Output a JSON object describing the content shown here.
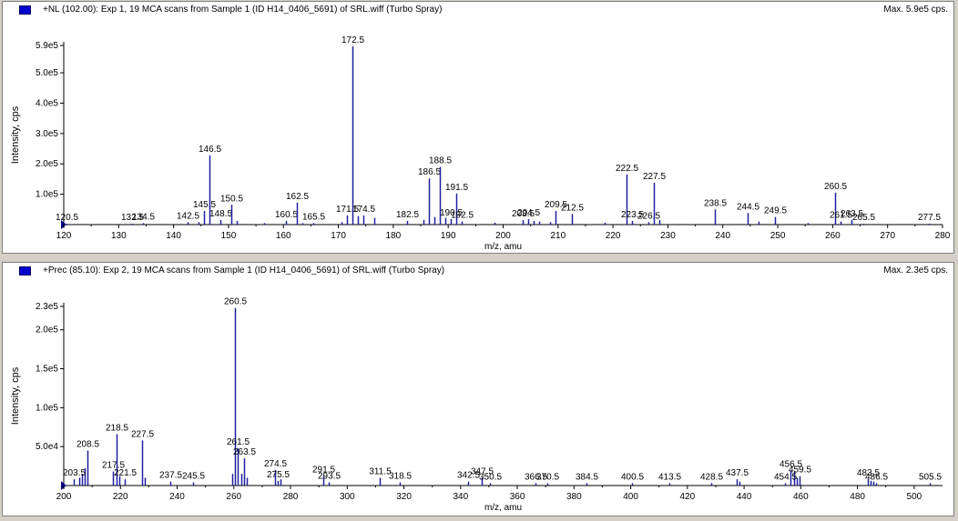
{
  "colors": {
    "peak": "#2020a0",
    "axis": "#000000",
    "swatch": "#0000cc"
  },
  "chart_data": [
    {
      "type": "bar",
      "title": "+NL (102.00): Exp 1, 19 MCA scans from Sample 1 (ID H14_0406_5691) of SRL.wiff (Turbo Spray)",
      "max_label": "Max. 5.9e5 cps.",
      "xlabel": "m/z, amu",
      "ylabel": "Intensity, cps",
      "xlim": [
        120,
        280
      ],
      "ylim": [
        0,
        590000
      ],
      "xticks": [
        "120",
        "130",
        "140",
        "150",
        "160",
        "170",
        "180",
        "190",
        "200",
        "210",
        "220",
        "230",
        "240",
        "250",
        "260",
        "270",
        "280"
      ],
      "yticks": [
        {
          "v": 100000,
          "t": "1.0e5"
        },
        {
          "v": 200000,
          "t": "2.0e5"
        },
        {
          "v": 300000,
          "t": "3.0e5"
        },
        {
          "v": 400000,
          "t": "4.0e5"
        },
        {
          "v": 500000,
          "t": "5.0e5"
        },
        {
          "v": 590000,
          "t": "5.9e5"
        }
      ],
      "peaks": [
        {
          "x": 120.5,
          "y": 3000,
          "label": "120.5"
        },
        {
          "x": 132.5,
          "y": 3000,
          "label": "132.5"
        },
        {
          "x": 134.5,
          "y": 5000,
          "label": "134.5"
        },
        {
          "x": 142.5,
          "y": 8000,
          "label": "142.5"
        },
        {
          "x": 145.5,
          "y": 45000,
          "label": "145.5"
        },
        {
          "x": 146.5,
          "y": 228000,
          "label": "146.5"
        },
        {
          "x": 148.5,
          "y": 15000,
          "label": "148.5"
        },
        {
          "x": 150.5,
          "y": 65000,
          "label": "150.5"
        },
        {
          "x": 160.5,
          "y": 12000,
          "label": "160.5"
        },
        {
          "x": 162.5,
          "y": 72000,
          "label": "162.5"
        },
        {
          "x": 165.5,
          "y": 5000,
          "label": "165.5"
        },
        {
          "x": 171.5,
          "y": 30000,
          "label": "171.5"
        },
        {
          "x": 172.5,
          "y": 587000,
          "label": "172.5"
        },
        {
          "x": 174.5,
          "y": 30000,
          "label": "174.5"
        },
        {
          "x": 182.5,
          "y": 12000,
          "label": "182.5"
        },
        {
          "x": 186.5,
          "y": 152000,
          "label": "186.5"
        },
        {
          "x": 188.5,
          "y": 190000,
          "label": "188.5"
        },
        {
          "x": 190.5,
          "y": 18000,
          "label": "190.5"
        },
        {
          "x": 191.5,
          "y": 102000,
          "label": "191.5"
        },
        {
          "x": 192.5,
          "y": 10000,
          "label": "192.5"
        },
        {
          "x": 203.5,
          "y": 15000,
          "label": "203.5"
        },
        {
          "x": 204.5,
          "y": 18000,
          "label": "204.5"
        },
        {
          "x": 209.5,
          "y": 45000,
          "label": "209.5"
        },
        {
          "x": 212.5,
          "y": 35000,
          "label": "212.5"
        },
        {
          "x": 222.5,
          "y": 165000,
          "label": "222.5"
        },
        {
          "x": 223.5,
          "y": 12000,
          "label": "223.5"
        },
        {
          "x": 226.5,
          "y": 8000,
          "label": "226.5"
        },
        {
          "x": 227.5,
          "y": 138000,
          "label": "227.5"
        },
        {
          "x": 238.5,
          "y": 50000,
          "label": "238.5"
        },
        {
          "x": 244.5,
          "y": 38000,
          "label": "244.5"
        },
        {
          "x": 249.5,
          "y": 25000,
          "label": "249.5"
        },
        {
          "x": 260.5,
          "y": 105000,
          "label": "260.5"
        },
        {
          "x": 261.5,
          "y": 10000,
          "label": "261.5"
        },
        {
          "x": 263.5,
          "y": 15000,
          "label": "263.5"
        },
        {
          "x": 265.5,
          "y": 3000,
          "label": "265.5"
        },
        {
          "x": 277.5,
          "y": 3000,
          "label": "277.5"
        }
      ],
      "minor_peaks": [
        {
          "x": 144.5,
          "y": 8000
        },
        {
          "x": 151.5,
          "y": 12000
        },
        {
          "x": 156.5,
          "y": 5000
        },
        {
          "x": 163.5,
          "y": 5000
        },
        {
          "x": 170.5,
          "y": 8000
        },
        {
          "x": 173.5,
          "y": 28000
        },
        {
          "x": 176.5,
          "y": 22000
        },
        {
          "x": 185.5,
          "y": 15000
        },
        {
          "x": 187.5,
          "y": 25000
        },
        {
          "x": 189.5,
          "y": 22000
        },
        {
          "x": 198.5,
          "y": 6000
        },
        {
          "x": 205.5,
          "y": 12000
        },
        {
          "x": 206.5,
          "y": 10000
        },
        {
          "x": 208.5,
          "y": 8000
        },
        {
          "x": 218.5,
          "y": 6000
        },
        {
          "x": 228.5,
          "y": 15000
        },
        {
          "x": 246.5,
          "y": 10000
        },
        {
          "x": 255.5,
          "y": 5000
        }
      ]
    },
    {
      "type": "bar",
      "title": "+Prec (85.10): Exp 2, 19 MCA scans from Sample 1 (ID H14_0406_5691) of SRL.wiff (Turbo Spray)",
      "max_label": "Max. 2.3e5 cps.",
      "xlabel": "m/z, amu",
      "ylabel": "Intensity, cps",
      "xlim": [
        200,
        510
      ],
      "ylim": [
        0,
        230000
      ],
      "xticks": [
        "200",
        "220",
        "240",
        "260",
        "280",
        "300",
        "320",
        "340",
        "360",
        "380",
        "400",
        "420",
        "440",
        "460",
        "480",
        "500"
      ],
      "yticks": [
        {
          "v": 50000,
          "t": "5.0e4"
        },
        {
          "v": 100000,
          "t": "1.0e5"
        },
        {
          "v": 150000,
          "t": "1.5e5"
        },
        {
          "v": 200000,
          "t": "2.0e5"
        },
        {
          "v": 230000,
          "t": "2.3e5"
        }
      ],
      "peaks": [
        {
          "x": 203.5,
          "y": 8000,
          "label": "203.5"
        },
        {
          "x": 208.5,
          "y": 45000,
          "label": "208.5"
        },
        {
          "x": 217.5,
          "y": 18000,
          "label": "217.5"
        },
        {
          "x": 218.5,
          "y": 66000,
          "label": "218.5"
        },
        {
          "x": 221.5,
          "y": 8000,
          "label": "221.5"
        },
        {
          "x": 227.5,
          "y": 58000,
          "label": "227.5"
        },
        {
          "x": 237.5,
          "y": 5000,
          "label": "237.5"
        },
        {
          "x": 245.5,
          "y": 4000,
          "label": "245.5"
        },
        {
          "x": 260.5,
          "y": 228000,
          "label": "260.5"
        },
        {
          "x": 261.5,
          "y": 48000,
          "label": "261.5"
        },
        {
          "x": 263.5,
          "y": 35000,
          "label": "263.5"
        },
        {
          "x": 274.5,
          "y": 20000,
          "label": "274.5"
        },
        {
          "x": 275.5,
          "y": 6000,
          "label": "275.5"
        },
        {
          "x": 291.5,
          "y": 12000,
          "label": "291.5"
        },
        {
          "x": 293.5,
          "y": 4000,
          "label": "293.5"
        },
        {
          "x": 311.5,
          "y": 10000,
          "label": "311.5"
        },
        {
          "x": 318.5,
          "y": 4000,
          "label": "318.5"
        },
        {
          "x": 342.5,
          "y": 5000,
          "label": "342.5"
        },
        {
          "x": 347.5,
          "y": 10000,
          "label": "347.5"
        },
        {
          "x": 350.5,
          "y": 3000,
          "label": "350.5"
        },
        {
          "x": 366.5,
          "y": 3000,
          "label": "366.5"
        },
        {
          "x": 370.5,
          "y": 3000,
          "label": "370.5"
        },
        {
          "x": 384.5,
          "y": 3000,
          "label": "384.5"
        },
        {
          "x": 400.5,
          "y": 3000,
          "label": "400.5"
        },
        {
          "x": 413.5,
          "y": 3000,
          "label": "413.5"
        },
        {
          "x": 428.5,
          "y": 3000,
          "label": "428.5"
        },
        {
          "x": 437.5,
          "y": 8000,
          "label": "437.5"
        },
        {
          "x": 454.5,
          "y": 3000,
          "label": "454.5"
        },
        {
          "x": 456.5,
          "y": 19000,
          "label": "456.5"
        },
        {
          "x": 459.5,
          "y": 12000,
          "label": "459.5"
        },
        {
          "x": 483.5,
          "y": 8000,
          "label": "483.5"
        },
        {
          "x": 486.5,
          "y": 3000,
          "label": "486.5"
        },
        {
          "x": 505.5,
          "y": 3000,
          "label": "505.5"
        }
      ],
      "minor_peaks": [
        {
          "x": 205.5,
          "y": 10000
        },
        {
          "x": 206.5,
          "y": 15000
        },
        {
          "x": 207.5,
          "y": 22000
        },
        {
          "x": 219.5,
          "y": 12000
        },
        {
          "x": 228.5,
          "y": 10000
        },
        {
          "x": 259.5,
          "y": 15000
        },
        {
          "x": 262.5,
          "y": 15000
        },
        {
          "x": 264.5,
          "y": 10000
        },
        {
          "x": 276.5,
          "y": 8000
        },
        {
          "x": 438.5,
          "y": 5000
        },
        {
          "x": 457.5,
          "y": 18000
        },
        {
          "x": 458.5,
          "y": 10000
        },
        {
          "x": 484.5,
          "y": 6000
        },
        {
          "x": 485.5,
          "y": 5000
        }
      ]
    }
  ]
}
